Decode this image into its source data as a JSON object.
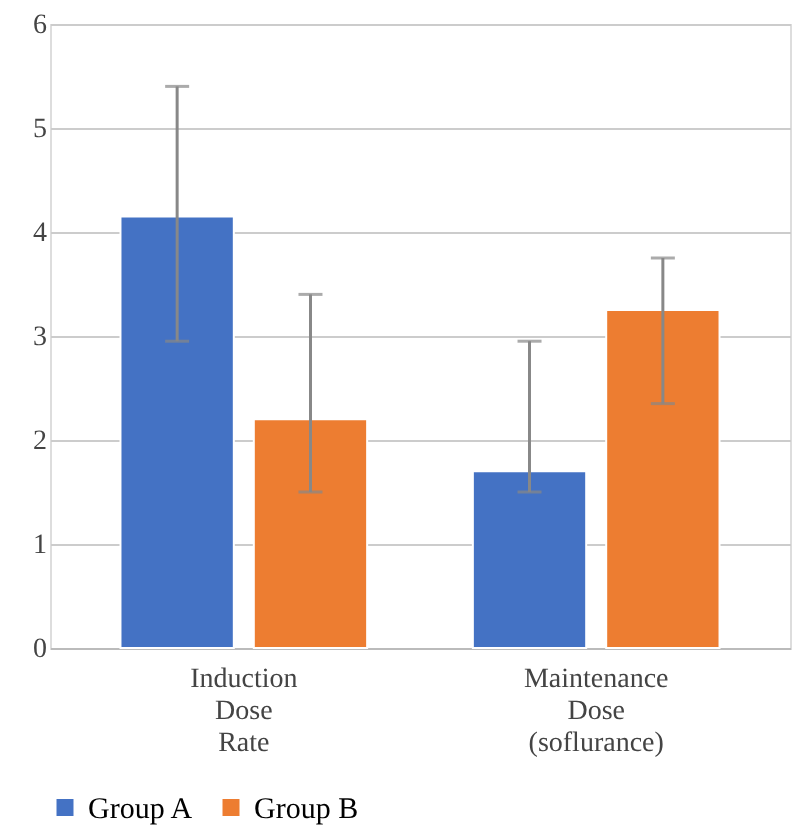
{
  "chart_data": {
    "type": "bar",
    "categories": [
      "Induction Dose Rate",
      "Maintenance Dose (soflurance)"
    ],
    "series": [
      {
        "name": "Group A",
        "color": "#4472c4",
        "values": [
          4.15,
          1.7
        ],
        "errors": [
          [
            2.95,
            5.4
          ],
          [
            1.5,
            2.95
          ]
        ]
      },
      {
        "name": "Group B",
        "color": "#ed7d31",
        "values": [
          2.2,
          3.25
        ],
        "errors": [
          [
            1.5,
            3.4
          ],
          [
            2.35,
            3.75
          ]
        ]
      }
    ],
    "ylim": [
      0,
      6
    ],
    "yticks": [
      0,
      1,
      2,
      3,
      4,
      5,
      6
    ],
    "grid": "y",
    "legend": "bottom"
  }
}
